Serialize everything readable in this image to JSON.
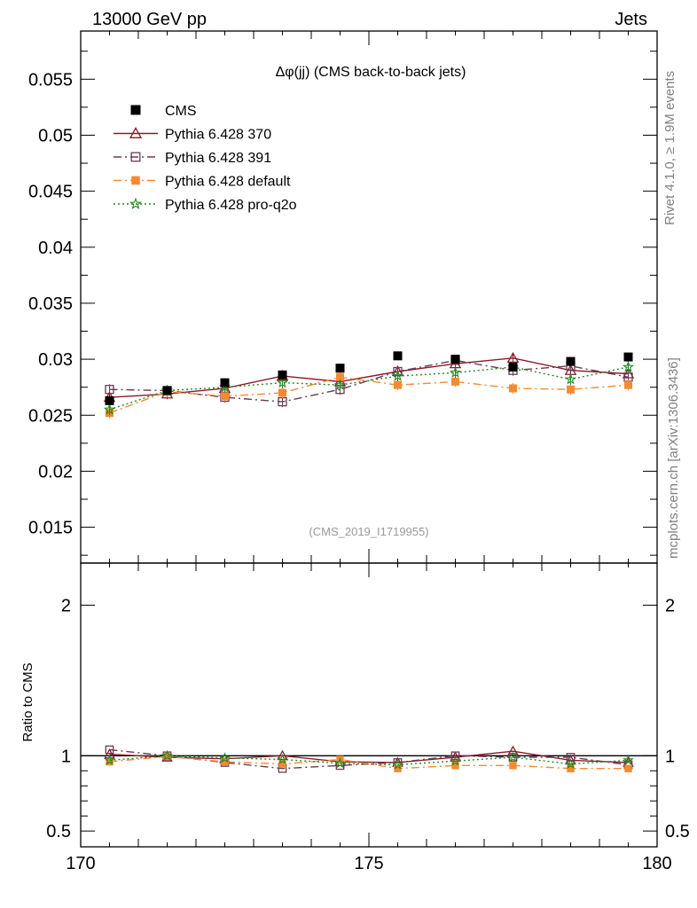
{
  "header": {
    "energy": "13000 GeV pp",
    "process": "Jets"
  },
  "side_labels": {
    "rivet": "Rivet 4.1.0, ≥ 1.9M events",
    "mcplots": "mcplots.cern.ch [arXiv:1306.3436]"
  },
  "watermark": "(CMS_2019_I1719955)",
  "chart_data": {
    "type": "line",
    "title": "Δφ(jj) (CMS back-to-back jets)",
    "xlabel": "",
    "ylabel": "",
    "xlim": [
      170,
      180
    ],
    "ylim": [
      0.0118,
      0.0593
    ],
    "x_ticks": [
      "170",
      "175",
      "180"
    ],
    "y_ticks": [
      "0.015",
      "0.02",
      "0.025",
      "0.03",
      "0.035",
      "0.04",
      "0.045",
      "0.05",
      "0.055"
    ],
    "x": [
      170.5,
      171.5,
      172.5,
      173.5,
      174.5,
      175.5,
      176.5,
      177.5,
      178.5,
      179.5
    ],
    "data": {
      "name": "CMS",
      "color": "#000000",
      "values": [
        0.0263,
        0.0272,
        0.0279,
        0.0286,
        0.0292,
        0.0303,
        0.03,
        0.0293,
        0.0298,
        0.0302
      ]
    },
    "series": [
      {
        "name": "Pythia 6.428 370",
        "color": "#8b1a2b",
        "values": [
          0.0266,
          0.0269,
          0.0274,
          0.0285,
          0.028,
          0.0289,
          0.0296,
          0.0301,
          0.029,
          0.0287
        ],
        "ratio": [
          1.01,
          0.99,
          0.98,
          1.0,
          0.96,
          0.955,
          0.99,
          1.03,
          0.97,
          0.955
        ]
      },
      {
        "name": "Pythia 6.428 391",
        "color": "#6b3a55",
        "values": [
          0.0273,
          0.0272,
          0.0266,
          0.0262,
          0.0273,
          0.0289,
          0.0299,
          0.029,
          0.0294,
          0.0284
        ],
        "ratio": [
          1.04,
          1.0,
          0.955,
          0.915,
          0.935,
          0.955,
          1.0,
          0.99,
          0.99,
          0.94
        ]
      },
      {
        "name": "Pythia 6.428 default",
        "color": "#f58a31",
        "values": [
          0.0252,
          0.0271,
          0.0267,
          0.027,
          0.0284,
          0.0277,
          0.028,
          0.0274,
          0.0273,
          0.0277
        ],
        "ratio": [
          0.96,
          0.995,
          0.96,
          0.945,
          0.975,
          0.915,
          0.935,
          0.935,
          0.915,
          0.915
        ]
      },
      {
        "name": "Pythia 6.428 pro-q2o",
        "color": "#1f8a1f",
        "values": [
          0.0255,
          0.0272,
          0.0275,
          0.0279,
          0.0277,
          0.0285,
          0.0288,
          0.0293,
          0.0282,
          0.0293
        ],
        "ratio": [
          0.97,
          1.0,
          0.985,
          0.975,
          0.95,
          0.94,
          0.965,
          0.99,
          0.945,
          0.97
        ]
      }
    ],
    "ratio_panel": {
      "ylabel": "Ratio to CMS",
      "ylim": [
        0.395,
        2.28
      ],
      "y_ticks": [
        "0.5",
        "1",
        "2"
      ]
    }
  }
}
